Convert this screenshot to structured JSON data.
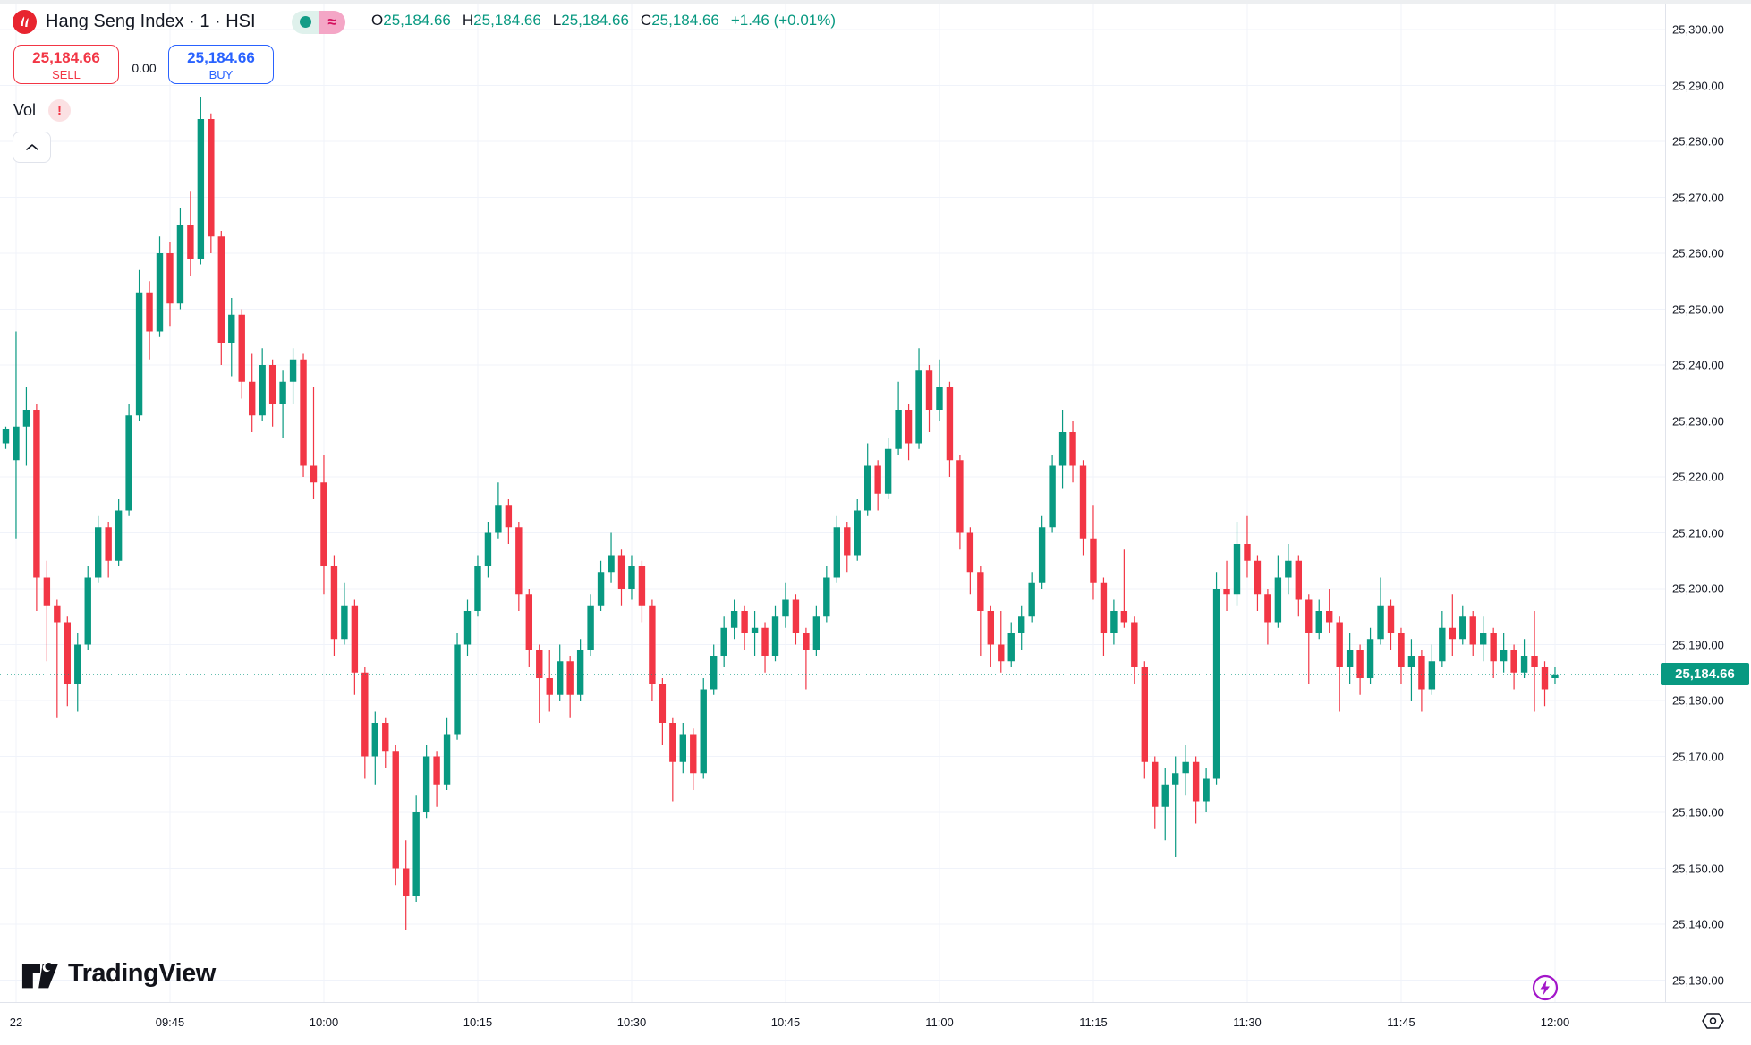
{
  "header": {
    "symbol_title": "Hang Seng Index · 1 · HSI",
    "status_approx": "≈",
    "ohlc": {
      "o_label": "O",
      "o": "25,184.66",
      "h_label": "H",
      "h": "25,184.66",
      "l_label": "L",
      "l": "25,184.66",
      "c_label": "C",
      "c": "25,184.66",
      "change": "+1.46 (+0.01%)"
    },
    "sell": {
      "price": "25,184.66",
      "label": "SELL"
    },
    "spread": "0.00",
    "buy": {
      "price": "25,184.66",
      "label": "BUY"
    },
    "vol_label": "Vol",
    "vol_warning": "!"
  },
  "footer": {
    "logo_text": "TradingView"
  },
  "price_axis": {
    "ticks": [
      "25,300.00",
      "25,290.00",
      "25,280.00",
      "25,270.00",
      "25,260.00",
      "25,250.00",
      "25,240.00",
      "25,230.00",
      "25,220.00",
      "25,210.00",
      "25,200.00",
      "25,190.00",
      "25,180.00",
      "25,170.00",
      "25,160.00",
      "25,150.00",
      "25,140.00",
      "25,130.00"
    ],
    "current_label": "25,184.66",
    "current_value": 25184.66
  },
  "time_axis": {
    "ticks": [
      {
        "label": "22",
        "m": 0
      },
      {
        "label": "09:45",
        "m": 15
      },
      {
        "label": "10:00",
        "m": 30
      },
      {
        "label": "10:15",
        "m": 45
      },
      {
        "label": "10:30",
        "m": 60
      },
      {
        "label": "10:45",
        "m": 75
      },
      {
        "label": "11:00",
        "m": 90
      },
      {
        "label": "11:15",
        "m": 105
      },
      {
        "label": "11:30",
        "m": 120
      },
      {
        "label": "11:45",
        "m": 135
      },
      {
        "label": "12:00",
        "m": 150
      }
    ]
  },
  "colors": {
    "up": "#089981",
    "down": "#f23645",
    "buy_blue": "#2962ff",
    "sell_red": "#f23645",
    "grid": "#f0f3fa",
    "axis_border": "#e0e3eb",
    "text": "#131722",
    "current_price_bg": "#089981",
    "dotted_line": "#089981",
    "flash_purple": "#a316c9",
    "symbol_logo_red": "#e8242f"
  },
  "chart_data": {
    "type": "candlestick",
    "title": "Hang Seng Index",
    "symbol": "HSI",
    "interval": "1",
    "session": "09:30–12:00",
    "ylim": [
      25130,
      25300
    ],
    "grid": true,
    "last_price": 25184.66,
    "change": 1.46,
    "change_pct": 0.01,
    "columns": [
      "time",
      "open",
      "high",
      "low",
      "close"
    ],
    "candles": [
      [
        "09:29",
        25226,
        25229,
        25225,
        25228.5
      ],
      [
        "09:30",
        25223,
        25246,
        25209,
        25229
      ],
      [
        "09:31",
        25229,
        25236,
        25222,
        25232
      ],
      [
        "09:32",
        25232,
        25233,
        25196,
        25202
      ],
      [
        "09:33",
        25202,
        25205,
        25187,
        25197
      ],
      [
        "09:34",
        25197,
        25198,
        25177,
        25194
      ],
      [
        "09:35",
        25194,
        25195,
        25179,
        25183
      ],
      [
        "09:36",
        25183,
        25192,
        25178,
        25190
      ],
      [
        "09:37",
        25190,
        25204,
        25189,
        25202
      ],
      [
        "09:38",
        25202,
        25213,
        25201,
        25211
      ],
      [
        "09:39",
        25211,
        25212,
        25202,
        25205
      ],
      [
        "09:40",
        25205,
        25216,
        25204,
        25214
      ],
      [
        "09:41",
        25214,
        25233,
        25213,
        25231
      ],
      [
        "09:42",
        25231,
        25257,
        25230,
        25253
      ],
      [
        "09:43",
        25253,
        25255,
        25241,
        25246
      ],
      [
        "09:44",
        25246,
        25263,
        25245,
        25260
      ],
      [
        "09:45",
        25260,
        25262,
        25247,
        25251
      ],
      [
        "09:46",
        25251,
        25268,
        25250,
        25265
      ],
      [
        "09:47",
        25265,
        25271,
        25256,
        25259
      ],
      [
        "09:48",
        25259,
        25288,
        25258,
        25284
      ],
      [
        "09:49",
        25284,
        25285,
        25260,
        25263
      ],
      [
        "09:50",
        25263,
        25264,
        25240,
        25244
      ],
      [
        "09:51",
        25244,
        25252,
        25238,
        25249
      ],
      [
        "09:52",
        25249,
        25250,
        25234,
        25237
      ],
      [
        "09:53",
        25237,
        25242,
        25228,
        25231
      ],
      [
        "09:54",
        25231,
        25243,
        25230,
        25240
      ],
      [
        "09:55",
        25240,
        25241,
        25229,
        25233
      ],
      [
        "09:56",
        25233,
        25239,
        25227,
        25237
      ],
      [
        "09:57",
        25237,
        25243,
        25233,
        25241
      ],
      [
        "09:58",
        25241,
        25242,
        25220,
        25222
      ],
      [
        "09:59",
        25222,
        25236,
        25216,
        25219
      ],
      [
        "10:00",
        25219,
        25224,
        25199,
        25204
      ],
      [
        "10:01",
        25204,
        25206,
        25188,
        25191
      ],
      [
        "10:02",
        25191,
        25201,
        25190,
        25197
      ],
      [
        "10:03",
        25197,
        25198,
        25181,
        25185
      ],
      [
        "10:04",
        25185,
        25186,
        25166,
        25170
      ],
      [
        "10:05",
        25170,
        25178,
        25165,
        25176
      ],
      [
        "10:06",
        25176,
        25177,
        25168,
        25171
      ],
      [
        "10:07",
        25171,
        25172,
        25147,
        25150
      ],
      [
        "10:08",
        25150,
        25155,
        25139,
        25145
      ],
      [
        "10:09",
        25145,
        25163,
        25144,
        25160
      ],
      [
        "10:10",
        25160,
        25172,
        25159,
        25170
      ],
      [
        "10:11",
        25170,
        25171,
        25161,
        25165
      ],
      [
        "10:12",
        25165,
        25177,
        25164,
        25174
      ],
      [
        "10:13",
        25174,
        25192,
        25173,
        25190
      ],
      [
        "10:14",
        25190,
        25198,
        25188,
        25196
      ],
      [
        "10:15",
        25196,
        25206,
        25195,
        25204
      ],
      [
        "10:16",
        25204,
        25212,
        25202,
        25210
      ],
      [
        "10:17",
        25210,
        25219,
        25209,
        25215
      ],
      [
        "10:18",
        25215,
        25216,
        25208,
        25211
      ],
      [
        "10:19",
        25211,
        25212,
        25196,
        25199
      ],
      [
        "10:20",
        25199,
        25200,
        25186,
        25189
      ],
      [
        "10:21",
        25189,
        25190,
        25176,
        25184
      ],
      [
        "10:22",
        25184,
        25189,
        25178,
        25181
      ],
      [
        "10:23",
        25181,
        25190,
        25180,
        25187
      ],
      [
        "10:24",
        25187,
        25188,
        25177,
        25181
      ],
      [
        "10:25",
        25181,
        25191,
        25180,
        25189
      ],
      [
        "10:26",
        25189,
        25199,
        25188,
        25197
      ],
      [
        "10:27",
        25197,
        25205,
        25196,
        25203
      ],
      [
        "10:28",
        25203,
        25210,
        25201,
        25206
      ],
      [
        "10:29",
        25206,
        25207,
        25197,
        25200
      ],
      [
        "10:30",
        25200,
        25206,
        25198,
        25204
      ],
      [
        "10:31",
        25204,
        25205,
        25194,
        25197
      ],
      [
        "10:32",
        25197,
        25198,
        25180,
        25183
      ],
      [
        "10:33",
        25183,
        25184,
        25172,
        25176
      ],
      [
        "10:34",
        25176,
        25177,
        25162,
        25169
      ],
      [
        "10:35",
        25169,
        25176,
        25167,
        25174
      ],
      [
        "10:36",
        25174,
        25175,
        25164,
        25167
      ],
      [
        "10:37",
        25167,
        25184,
        25166,
        25182
      ],
      [
        "10:38",
        25182,
        25190,
        25181,
        25188
      ],
      [
        "10:39",
        25188,
        25195,
        25186,
        25193
      ],
      [
        "10:40",
        25193,
        25198,
        25191,
        25196
      ],
      [
        "10:41",
        25196,
        25197,
        25189,
        25192
      ],
      [
        "10:42",
        25192,
        25196,
        25188,
        25193
      ],
      [
        "10:43",
        25193,
        25194,
        25185,
        25188
      ],
      [
        "10:44",
        25188,
        25197,
        25187,
        25195
      ],
      [
        "10:45",
        25195,
        25201,
        25193,
        25198
      ],
      [
        "10:46",
        25198,
        25199,
        25190,
        25192
      ],
      [
        "10:47",
        25192,
        25193,
        25182,
        25189
      ],
      [
        "10:48",
        25189,
        25197,
        25188,
        25195
      ],
      [
        "10:49",
        25195,
        25204,
        25194,
        25202
      ],
      [
        "10:50",
        25202,
        25213,
        25201,
        25211
      ],
      [
        "10:51",
        25211,
        25212,
        25203,
        25206
      ],
      [
        "10:52",
        25206,
        25216,
        25205,
        25214
      ],
      [
        "10:53",
        25214,
        25226,
        25213,
        25222
      ],
      [
        "10:54",
        25222,
        25223,
        25214,
        25217
      ],
      [
        "10:55",
        25217,
        25227,
        25216,
        25225
      ],
      [
        "10:56",
        25225,
        25237,
        25224,
        25232
      ],
      [
        "10:57",
        25232,
        25233,
        25223,
        25226
      ],
      [
        "10:58",
        25226,
        25243,
        25225,
        25239
      ],
      [
        "10:59",
        25239,
        25240,
        25228,
        25232
      ],
      [
        "11:00",
        25232,
        25241,
        25230,
        25236
      ],
      [
        "11:01",
        25236,
        25237,
        25220,
        25223
      ],
      [
        "11:02",
        25223,
        25224,
        25207,
        25210
      ],
      [
        "11:03",
        25210,
        25211,
        25199,
        25203
      ],
      [
        "11:04",
        25203,
        25204,
        25188,
        25196
      ],
      [
        "11:05",
        25196,
        25197,
        25186,
        25190
      ],
      [
        "11:06",
        25190,
        25196,
        25185,
        25187
      ],
      [
        "11:07",
        25187,
        25194,
        25186,
        25192
      ],
      [
        "11:08",
        25192,
        25197,
        25189,
        25195
      ],
      [
        "11:09",
        25195,
        25203,
        25194,
        25201
      ],
      [
        "11:10",
        25201,
        25213,
        25200,
        25211
      ],
      [
        "11:11",
        25211,
        25224,
        25210,
        25222
      ],
      [
        "11:12",
        25222,
        25232,
        25218,
        25228
      ],
      [
        "11:13",
        25228,
        25230,
        25219,
        25222
      ],
      [
        "11:14",
        25222,
        25223,
        25206,
        25209
      ],
      [
        "11:15",
        25209,
        25215,
        25198,
        25201
      ],
      [
        "11:16",
        25201,
        25202,
        25188,
        25192
      ],
      [
        "11:17",
        25192,
        25198,
        25190,
        25196
      ],
      [
        "11:18",
        25196,
        25207,
        25193,
        25194
      ],
      [
        "11:19",
        25194,
        25195,
        25183,
        25186
      ],
      [
        "11:20",
        25186,
        25187,
        25166,
        25169
      ],
      [
        "11:21",
        25169,
        25170,
        25157,
        25161
      ],
      [
        "11:22",
        25161,
        25168,
        25155,
        25165
      ],
      [
        "11:23",
        25165,
        25170,
        25152,
        25167
      ],
      [
        "11:24",
        25167,
        25172,
        25163,
        25169
      ],
      [
        "11:25",
        25169,
        25170,
        25158,
        25162
      ],
      [
        "11:26",
        25162,
        25168,
        25160,
        25166
      ],
      [
        "11:27",
        25166,
        25203,
        25165,
        25200
      ],
      [
        "11:28",
        25200,
        25205,
        25196,
        25199
      ],
      [
        "11:29",
        25199,
        25212,
        25197,
        25208
      ],
      [
        "11:30",
        25208,
        25213,
        25202,
        25205
      ],
      [
        "11:31",
        25205,
        25206,
        25196,
        25199
      ],
      [
        "11:32",
        25199,
        25200,
        25190,
        25194
      ],
      [
        "11:33",
        25194,
        25206,
        25193,
        25202
      ],
      [
        "11:34",
        25202,
        25208,
        25199,
        25205
      ],
      [
        "11:35",
        25205,
        25206,
        25195,
        25198
      ],
      [
        "11:36",
        25198,
        25199,
        25183,
        25192
      ],
      [
        "11:37",
        25192,
        25198,
        25191,
        25196
      ],
      [
        "11:38",
        25196,
        25200,
        25192,
        25194
      ],
      [
        "11:39",
        25194,
        25195,
        25178,
        25186
      ],
      [
        "11:40",
        25186,
        25192,
        25183,
        25189
      ],
      [
        "11:41",
        25189,
        25190,
        25181,
        25184
      ],
      [
        "11:42",
        25184,
        25193,
        25183,
        25191
      ],
      [
        "11:43",
        25191,
        25202,
        25190,
        25197
      ],
      [
        "11:44",
        25197,
        25198,
        25189,
        25192
      ],
      [
        "11:45",
        25192,
        25193,
        25183,
        25186
      ],
      [
        "11:46",
        25186,
        25191,
        25180,
        25188
      ],
      [
        "11:47",
        25188,
        25189,
        25178,
        25182
      ],
      [
        "11:48",
        25182,
        25190,
        25181,
        25187
      ],
      [
        "11:49",
        25187,
        25196,
        25186,
        25193
      ],
      [
        "11:50",
        25193,
        25199,
        25188,
        25191
      ],
      [
        "11:51",
        25191,
        25197,
        25190,
        25195
      ],
      [
        "11:52",
        25195,
        25196,
        25188,
        25190
      ],
      [
        "11:53",
        25190,
        25195,
        25187,
        25192
      ],
      [
        "11:54",
        25192,
        25193,
        25184,
        25187
      ],
      [
        "11:55",
        25187,
        25192,
        25185,
        25189
      ],
      [
        "11:56",
        25189,
        25190,
        25182,
        25185
      ],
      [
        "11:57",
        25185,
        25191,
        25184,
        25188
      ],
      [
        "11:58",
        25188,
        25196,
        25178,
        25186
      ],
      [
        "11:59",
        25186,
        25187,
        25179,
        25182
      ],
      [
        "12:00",
        25184,
        25186,
        25183,
        25184.66
      ]
    ]
  }
}
